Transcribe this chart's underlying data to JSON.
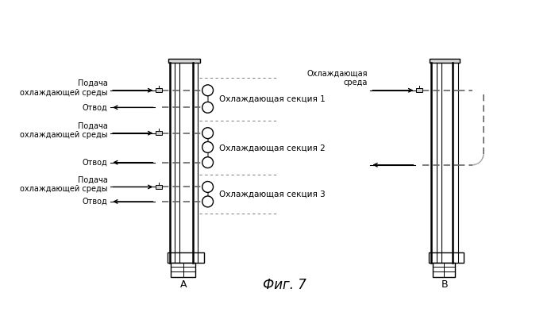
{
  "title": "Фиг. 7",
  "label_A": "А",
  "label_B": "В",
  "fig_bg": "#ffffff",
  "sec1": "Охлаждающая секция 1",
  "sec2": "Охлаждающая секция 2",
  "sec3": "Охлаждающая секция 3",
  "podacha": "Подача\nохлаждающей среды",
  "otvod": "Отвод",
  "ohlazhd": "Охлаждающая\nсреда",
  "line_color": "#000000",
  "dashed_color": "#666666"
}
